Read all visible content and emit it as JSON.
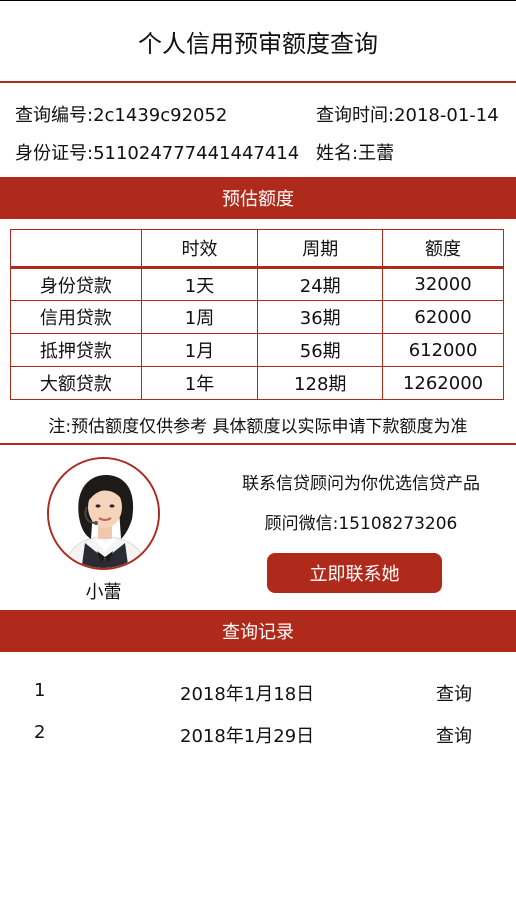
{
  "header": {
    "title": "个人信用预审额度查询"
  },
  "info": {
    "query_no": "查询编号:2c1439c92052",
    "query_time": "查询时间:2018-01-14",
    "id_no": "身份证号:511024777441447414",
    "name": "姓名:王蕾"
  },
  "quota": {
    "section_title": "预估额度",
    "headers": [
      "",
      "时效",
      "周期",
      "额度"
    ],
    "rows": [
      [
        "身份贷款",
        "1天",
        "24期",
        "32000"
      ],
      [
        "信用贷款",
        "1周",
        "36期",
        "62000"
      ],
      [
        "抵押贷款",
        "1月",
        "56期",
        "612000"
      ],
      [
        "大额贷款",
        "1年",
        "128期",
        "1262000"
      ]
    ],
    "note": "注:预估额度仅供参考 具体额度以实际申请下款额度为准"
  },
  "advisor": {
    "name": "小蕾",
    "line1": "联系信贷顾问为你优选信贷产品",
    "line2": "顾问微信:15108273206",
    "button": "立即联系她"
  },
  "records": {
    "section_title": "查询记录",
    "items": [
      {
        "no": "1",
        "date": "2018年1月18日",
        "action": "查询"
      },
      {
        "no": "2",
        "date": "2018年1月29日",
        "action": "查询"
      }
    ]
  },
  "colors": {
    "accent": "#b02a1c",
    "text": "#111111",
    "background": "#ffffff"
  }
}
